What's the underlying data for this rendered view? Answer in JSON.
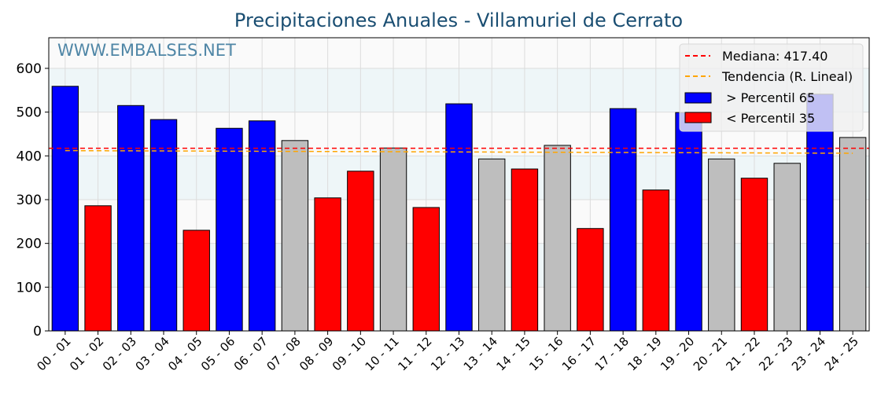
{
  "chart_data": {
    "type": "bar",
    "title": "Precipitaciones Anuales - Villamuriel de Cerrato",
    "watermark": "WWW.EMBALSES.NET",
    "xlabel": "",
    "ylabel": "",
    "ylim": [
      0,
      670
    ],
    "yticks": [
      0,
      100,
      200,
      300,
      400,
      500,
      600
    ],
    "grid": true,
    "legend_position": "top-right",
    "categories": [
      "00 - 01",
      "01 - 02",
      "02 - 03",
      "03 - 04",
      "04 - 05",
      "05 - 06",
      "06 - 07",
      "07 - 08",
      "08 - 09",
      "09 - 10",
      "10 - 11",
      "11 - 12",
      "12 - 13",
      "13 - 14",
      "14 - 15",
      "15 - 16",
      "16 - 17",
      "17 - 18",
      "18 - 19",
      "19 - 20",
      "20 - 21",
      "21 - 22",
      "22 - 23",
      "23 - 24",
      "24 - 25"
    ],
    "values": [
      559,
      286,
      515,
      483,
      230,
      463,
      480,
      435,
      304,
      365,
      418,
      282,
      519,
      393,
      370,
      424,
      234,
      508,
      322,
      499,
      393,
      349,
      383,
      541,
      442
    ],
    "classes": [
      "high",
      "low",
      "high",
      "high",
      "low",
      "high",
      "high",
      "mid",
      "low",
      "low",
      "mid",
      "low",
      "high",
      "mid",
      "low",
      "mid",
      "low",
      "high",
      "low",
      "high",
      "mid",
      "low",
      "mid",
      "high",
      "mid"
    ],
    "colors": {
      "high": "#0000ff",
      "low": "#ff0000",
      "mid": "#bebebe",
      "median": "#ff0000",
      "trend": "#ffa500",
      "title": "#1a4e72",
      "watermark": "#4f86a6"
    },
    "median": 417.4,
    "trend": {
      "start": 412,
      "end": 406
    },
    "legend": {
      "median": "Mediana: 417.40",
      "trend": "Tendencia (R. Lineal)",
      "high": " > Percentil 65",
      "low": " < Percentil 35"
    }
  }
}
